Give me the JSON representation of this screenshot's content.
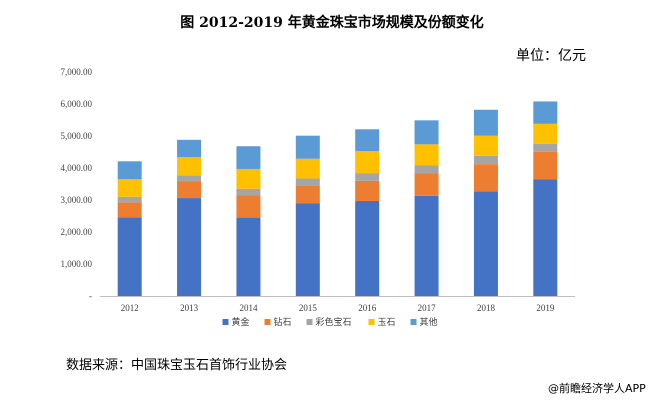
{
  "title": "图 2012-2019 年黄金珠宝市场规模及份额变化",
  "unit": "单位：亿元",
  "source": "数据来源：中国珠宝玉石首饰行业协会",
  "brand": "@前瞻经济学人APP",
  "chart_data": {
    "type": "bar",
    "stacked": true,
    "categories": [
      "2012",
      "2013",
      "2014",
      "2015",
      "2016",
      "2017",
      "2018",
      "2019"
    ],
    "ylim": [
      0,
      7000
    ],
    "yticks": [
      0,
      1000,
      2000,
      3000,
      4000,
      5000,
      6000,
      7000
    ],
    "ytick_labels": [
      "-",
      "1,000.00",
      "2,000.00",
      "3,000.00",
      "4,000.00",
      "5,000.00",
      "6,000.00",
      "7,000.00"
    ],
    "grid": false,
    "legend_position": "bottom",
    "series": [
      {
        "name": "黄金",
        "color": "#4472c4",
        "values": [
          2460,
          3060,
          2450,
          2890,
          2970,
          3130,
          3270,
          3640
        ]
      },
      {
        "name": "钻石",
        "color": "#ed7d31",
        "values": [
          470,
          530,
          690,
          560,
          630,
          700,
          850,
          870
        ]
      },
      {
        "name": "彩色宝石",
        "color": "#a5a5a5",
        "values": [
          170,
          180,
          210,
          220,
          240,
          260,
          260,
          250
        ]
      },
      {
        "name": "玉石",
        "color": "#ffc000",
        "values": [
          550,
          570,
          620,
          620,
          690,
          650,
          630,
          620
        ]
      },
      {
        "name": "其他",
        "color": "#5b9bd5",
        "values": [
          560,
          540,
          710,
          720,
          680,
          750,
          810,
          700
        ]
      }
    ]
  }
}
